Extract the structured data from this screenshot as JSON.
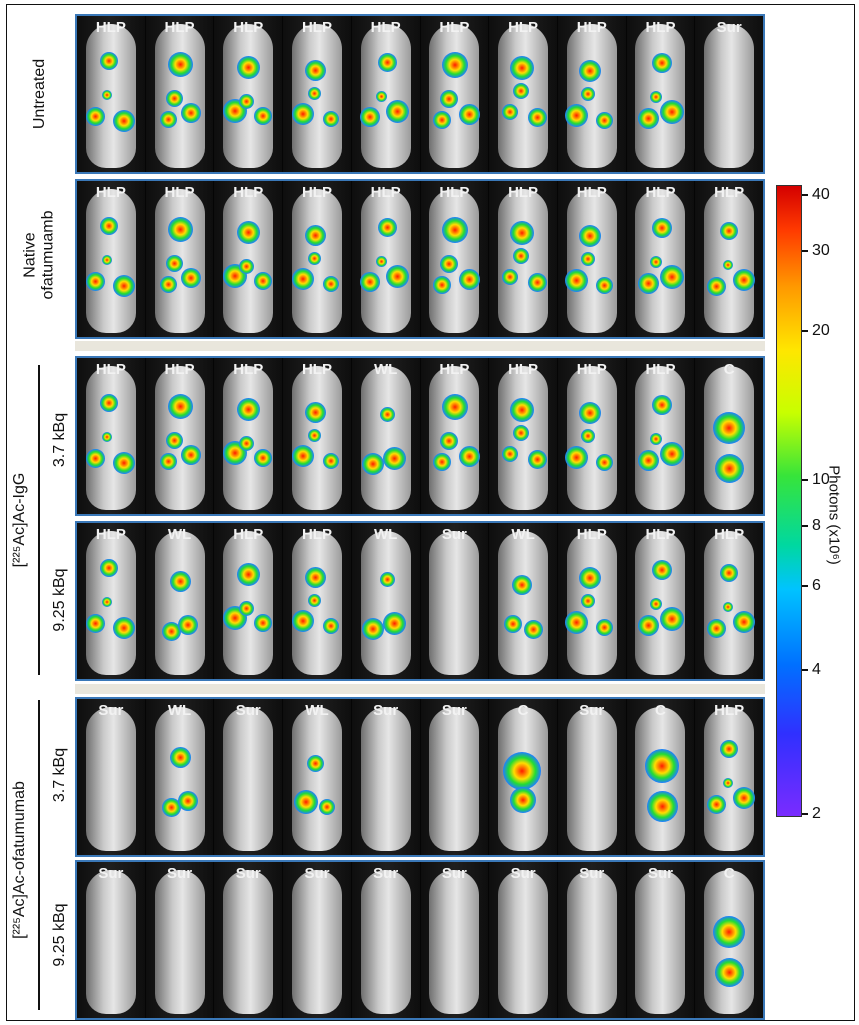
{
  "rows": [
    {
      "labels": [
        "HLP",
        "HLP",
        "HLP",
        "HLP",
        "HLP",
        "HLP",
        "HLP",
        "HLP",
        "HLP",
        "Sur"
      ]
    },
    {
      "labels": [
        "HLP",
        "HLP",
        "HLP",
        "HLP",
        "HLP",
        "HLP",
        "HLP",
        "HLP",
        "HLP",
        "HLP"
      ]
    },
    {
      "labels": [
        "HLP",
        "HLP",
        "HLP",
        "HLP",
        "WL",
        "HLP",
        "HLP",
        "HLP",
        "HLP",
        "C"
      ]
    },
    {
      "labels": [
        "HLP",
        "WL",
        "HLP",
        "HLP",
        "WL",
        "Sur",
        "WL",
        "HLP",
        "HLP",
        "HLP"
      ]
    },
    {
      "labels": [
        "Sur",
        "WL",
        "Sur",
        "WL",
        "Sur",
        "Sur",
        "C",
        "Sur",
        "C",
        "HLP"
      ]
    },
    {
      "labels": [
        "Sur",
        "Sur",
        "Sur",
        "Sur",
        "Sur",
        "Sur",
        "Sur",
        "Sur",
        "Sur",
        "C"
      ]
    }
  ],
  "row_labels": {
    "untreated": "Untreated",
    "native_line1": "Native",
    "native_line2": "ofatumuamb",
    "igg_group": "[²²⁵Ac]Ac-IgG",
    "igg_low": "3.7 kBq",
    "igg_high": "9.25 kBq",
    "ofa_group": "[²²⁵Ac]Ac-ofatumumab",
    "ofa_low": "3.7 kBq",
    "ofa_high": "9.25 kBq"
  },
  "colorbar": {
    "title": "Photons (x10⁶)",
    "ticks": [
      "40",
      "30",
      "20",
      "10",
      "8",
      "6",
      "4",
      "2"
    ],
    "colors": [
      "#d40000",
      "#ff9900",
      "#ffe600",
      "#37e43a",
      "#00c3ff",
      "#0070ff",
      "#7a2cff"
    ]
  }
}
